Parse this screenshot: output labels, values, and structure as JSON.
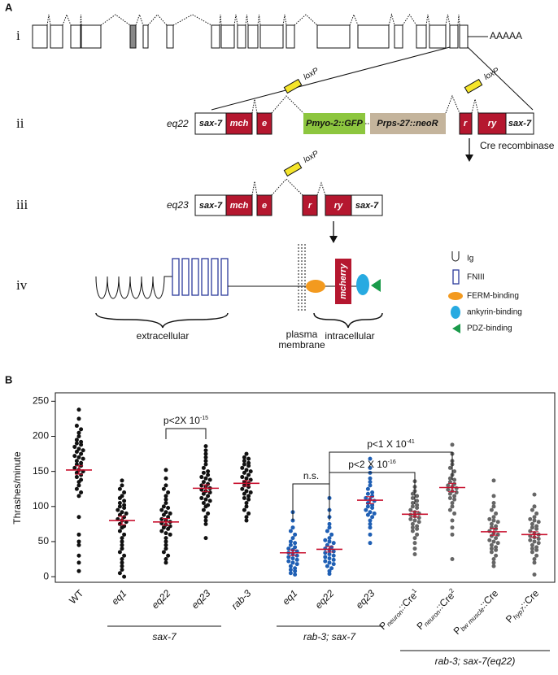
{
  "panel_a": {
    "label": "A",
    "rows": [
      "i",
      "ii",
      "iii",
      "iv"
    ],
    "poly_a": "AAAAA",
    "row_ii": {
      "allele": "eq22",
      "boxes": [
        "sax-7",
        "mch",
        "e",
        "Pmyo-2::GFP",
        "Prps-27::neoR",
        "r",
        "ry",
        "sax-7"
      ],
      "loxp": [
        "loxP",
        "loxP"
      ]
    },
    "arrow_label": "Cre recombinase",
    "row_iii": {
      "allele": "eq23",
      "boxes": [
        "sax-7",
        "mch",
        "e",
        "r",
        "ry",
        "sax-7"
      ],
      "loxp": "loxP"
    },
    "row_iv": {
      "mcherry": "mcherry",
      "regions": [
        "extracellular",
        "intracellular"
      ],
      "membrane": [
        "plasma",
        "membrane"
      ]
    },
    "legend": [
      "Ig",
      "FNIII",
      "FERM-binding",
      "ankyrin-binding",
      "PDZ-binding"
    ]
  },
  "chart_data": {
    "type": "strip",
    "panel_label": "B",
    "ylabel": "Thrashes/minute",
    "ylim": [
      -8,
      262
    ],
    "yticks": [
      0,
      50,
      100,
      150,
      200,
      250
    ],
    "groups": [
      {
        "label": "WT",
        "color": "#111111",
        "mean": 152,
        "sem": 6,
        "values": [
          238,
          225,
          215,
          210,
          205,
          200,
          195,
          192,
          190,
          188,
          185,
          182,
          180,
          178,
          175,
          172,
          170,
          168,
          165,
          162,
          160,
          158,
          155,
          152,
          150,
          148,
          145,
          142,
          138,
          135,
          130,
          125,
          120,
          115,
          85,
          60,
          50,
          45,
          30,
          20,
          8
        ]
      },
      {
        "label": "eq1",
        "color": "#111111",
        "mean": 80,
        "sem": 6,
        "values": [
          137,
          130,
          125,
          120,
          115,
          112,
          108,
          105,
          102,
          100,
          98,
          95,
          92,
          90,
          88,
          85,
          82,
          80,
          78,
          75,
          72,
          70,
          65,
          60,
          55,
          50,
          45,
          40,
          35,
          30,
          25,
          20,
          15,
          10,
          5,
          0
        ]
      },
      {
        "label": "eq22",
        "color": "#111111",
        "mean": 78,
        "sem": 5,
        "values": [
          152,
          140,
          130,
          125,
          120,
          115,
          110,
          105,
          100,
          98,
          95,
          92,
          90,
          88,
          85,
          82,
          80,
          78,
          76,
          74,
          72,
          70,
          68,
          65,
          62,
          60,
          55,
          50,
          45,
          40,
          35,
          30,
          25,
          20
        ]
      },
      {
        "label": "eq23",
        "color": "#111111",
        "mean": 126,
        "sem": 5,
        "values": [
          186,
          180,
          175,
          170,
          165,
          160,
          155,
          150,
          148,
          145,
          142,
          140,
          138,
          135,
          132,
          130,
          128,
          126,
          124,
          122,
          120,
          118,
          115,
          112,
          110,
          108,
          105,
          102,
          100,
          95,
          90,
          85,
          80,
          75,
          55
        ]
      },
      {
        "label": "rab-3",
        "color": "#111111",
        "mean": 133,
        "sem": 4,
        "values": [
          175,
          170,
          168,
          165,
          162,
          160,
          158,
          155,
          152,
          150,
          148,
          145,
          142,
          140,
          138,
          135,
          133,
          130,
          128,
          125,
          122,
          120,
          118,
          115,
          112,
          110,
          105,
          100,
          95,
          90,
          85,
          80
        ]
      },
      {
        "label": "eq1",
        "color": "#1f5fb4",
        "mean": 34,
        "sem": 4,
        "values": [
          92,
          80,
          70,
          65,
          60,
          55,
          50,
          48,
          45,
          42,
          40,
          38,
          36,
          34,
          32,
          30,
          28,
          26,
          24,
          22,
          20,
          18,
          15,
          12,
          10,
          8,
          5,
          3
        ]
      },
      {
        "label": "eq22",
        "color": "#1f5fb4",
        "mean": 39,
        "sem": 4,
        "values": [
          112,
          95,
          85,
          75,
          70,
          65,
          60,
          55,
          52,
          50,
          48,
          45,
          42,
          40,
          38,
          36,
          34,
          32,
          30,
          28,
          26,
          24,
          22,
          20,
          18,
          15,
          12,
          8,
          4
        ]
      },
      {
        "label": "eq23",
        "color": "#1f5fb4",
        "mean": 109,
        "sem": 5,
        "values": [
          168,
          155,
          148,
          140,
          135,
          130,
          125,
          120,
          118,
          115,
          112,
          110,
          108,
          105,
          102,
          100,
          98,
          95,
          92,
          90,
          88,
          85,
          80,
          75,
          70,
          60,
          48
        ]
      },
      {
        "label": {
          "base": "P",
          "sub": "neuron",
          "rest": "::Cre",
          "sup": "1"
        },
        "color": "#666666",
        "mean": 89,
        "sem": 4,
        "values": [
          136,
          128,
          122,
          118,
          115,
          112,
          108,
          105,
          102,
          100,
          98,
          95,
          92,
          90,
          88,
          86,
          84,
          82,
          80,
          78,
          75,
          72,
          70,
          68,
          65,
          60,
          55,
          48,
          40,
          32
        ]
      },
      {
        "label": {
          "base": "P",
          "sub": "neuron",
          "rest": "::Cre",
          "sup": "2"
        },
        "color": "#666666",
        "mean": 127,
        "sem": 6,
        "values": [
          188,
          175,
          165,
          160,
          155,
          150,
          145,
          140,
          138,
          135,
          132,
          130,
          128,
          126,
          124,
          122,
          120,
          118,
          115,
          112,
          110,
          105,
          100,
          95,
          90,
          80,
          70,
          60,
          25
        ]
      },
      {
        "label": {
          "base": "P",
          "sub": "bw muscle",
          "rest": "::Cre"
        },
        "color": "#666666",
        "mean": 64,
        "sem": 5,
        "values": [
          137,
          115,
          105,
          100,
          95,
          90,
          85,
          82,
          80,
          78,
          75,
          72,
          70,
          68,
          65,
          62,
          60,
          58,
          55,
          52,
          50,
          48,
          45,
          42,
          40,
          38,
          35,
          30,
          25,
          20,
          15
        ]
      },
      {
        "label": {
          "base": "P",
          "sub": "hyp7",
          "rest": "::Cre"
        },
        "color": "#666666",
        "mean": 60,
        "sem": 4,
        "values": [
          117,
          100,
          95,
          90,
          85,
          82,
          80,
          78,
          75,
          72,
          70,
          68,
          65,
          62,
          60,
          58,
          56,
          54,
          52,
          50,
          48,
          45,
          42,
          40,
          38,
          35,
          30,
          25,
          20,
          3
        ]
      }
    ],
    "group_labels": [
      "sax-7",
      "rab-3; sax-7",
      "rab-3; sax-7(eq22)"
    ],
    "comparisons": [
      {
        "text": "p<2X 10",
        "sup": "-15"
      },
      {
        "text": "n.s."
      },
      {
        "text": "p<2 X 10",
        "sup": "-16"
      },
      {
        "text": "p<1 X 10",
        "sup": "-41"
      }
    ],
    "mean_color": "#c8102e"
  }
}
